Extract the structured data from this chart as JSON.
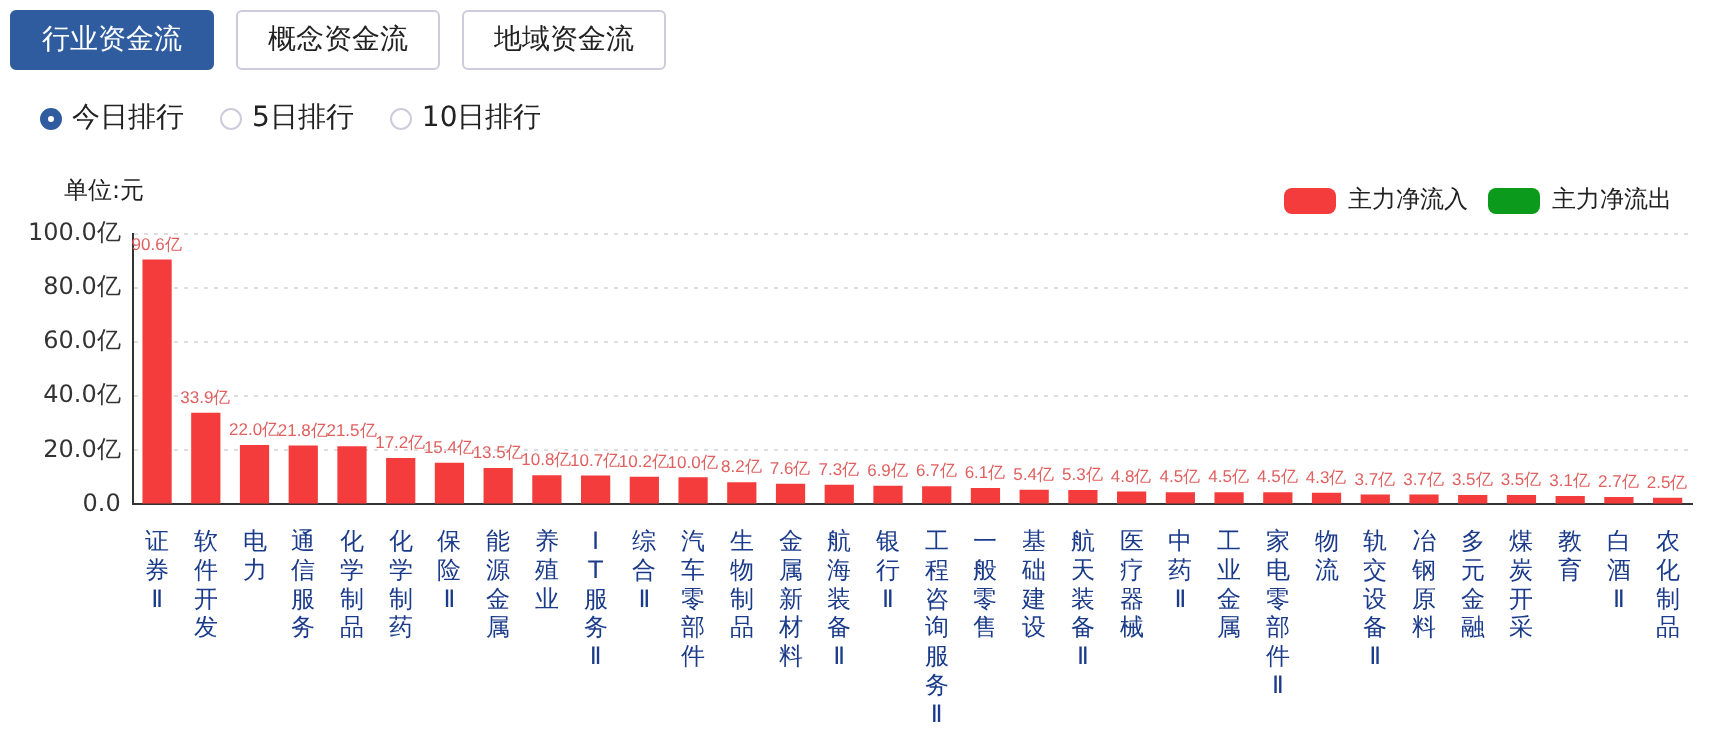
{
  "chart_data": [
    {
      "type": "other",
      "annotations": [
        "行业资金流",
        "概念资金流",
        "地域资金流"
      ]
    },
    {
      "type": "other",
      "annotations": [
        "今日排行",
        "5日排行",
        "10日排行"
      ]
    },
    {
      "type": "bar",
      "ylabel": "单位:元",
      "stacked": true,
      "grid": "y",
      "legend": "top right",
      "categories": [
        "证券Ⅱ",
        "软件开发",
        "电力",
        "通信服务",
        "化学制品",
        "化学制药",
        "保险Ⅱ",
        "能源金属",
        "养殖业",
        "IT服务Ⅱ",
        "综合Ⅱ",
        "汽车零部件",
        "生物制品",
        "金属新材料",
        "航海装备Ⅱ",
        "银行Ⅱ",
        "工程咨询服务Ⅱ",
        "一般零售",
        "基础建设",
        "航天装备Ⅱ",
        "医疗器械",
        "中药Ⅱ",
        "工业金属",
        "家电零部件Ⅱ",
        "物流",
        "轨交设备Ⅱ",
        "冶钢原料",
        "多元金融",
        "煤炭开采",
        "教育",
        "白酒Ⅱ",
        "农化制品"
      ],
      "ylim": [
        0,
        100
      ],
      "yticks": [
        {
          "value": 0,
          "label": "0.0"
        },
        {
          "value": 20,
          "label": "20.0亿"
        },
        {
          "value": 40,
          "label": "40.0亿"
        },
        {
          "value": 60,
          "label": "60.0亿"
        },
        {
          "value": 80,
          "label": "80.0亿"
        },
        {
          "value": 100,
          "label": "100.0亿"
        }
      ],
      "series": [
        {
          "name": "主力净流入",
          "color": "#f53c3c",
          "values": [
            90.6,
            33.9,
            22.0,
            21.8,
            21.5,
            17.2,
            15.4,
            13.5,
            10.8,
            10.7,
            10.2,
            10.0,
            8.2,
            7.6,
            7.3,
            6.9,
            6.7,
            6.1,
            5.4,
            5.3,
            4.8,
            4.5,
            4.5,
            4.5,
            4.3,
            3.7,
            3.7,
            3.5,
            3.5,
            3.1,
            2.7,
            2.5
          ],
          "value_labels": [
            "90.6亿",
            "33.9亿",
            "22.0亿",
            "21.8亿",
            "21.5亿",
            "17.2亿",
            "15.4亿",
            "13.5亿",
            "10.8亿",
            "10.7亿",
            "10.2亿",
            "10.0亿",
            "8.2亿",
            "7.6亿",
            "7.3亿",
            "6.9亿",
            "6.7亿",
            "6.1亿",
            "5.4亿",
            "5.3亿",
            "4.8亿",
            "4.5亿",
            "4.5亿",
            "4.5亿",
            "4.3亿",
            "3.7亿",
            "3.7亿",
            "3.5亿",
            "3.5亿",
            "3.1亿",
            "2.7亿",
            "2.5亿"
          ]
        },
        {
          "name": "主力净流出",
          "color": "#0b9a1b",
          "values": [
            null,
            null,
            null,
            null,
            null,
            null,
            null,
            null,
            null,
            null,
            null,
            null,
            null,
            null,
            null,
            null,
            null,
            null,
            null,
            null,
            null,
            null,
            null,
            null,
            null,
            null,
            null,
            null,
            null,
            null,
            null,
            null
          ]
        }
      ]
    }
  ]
}
